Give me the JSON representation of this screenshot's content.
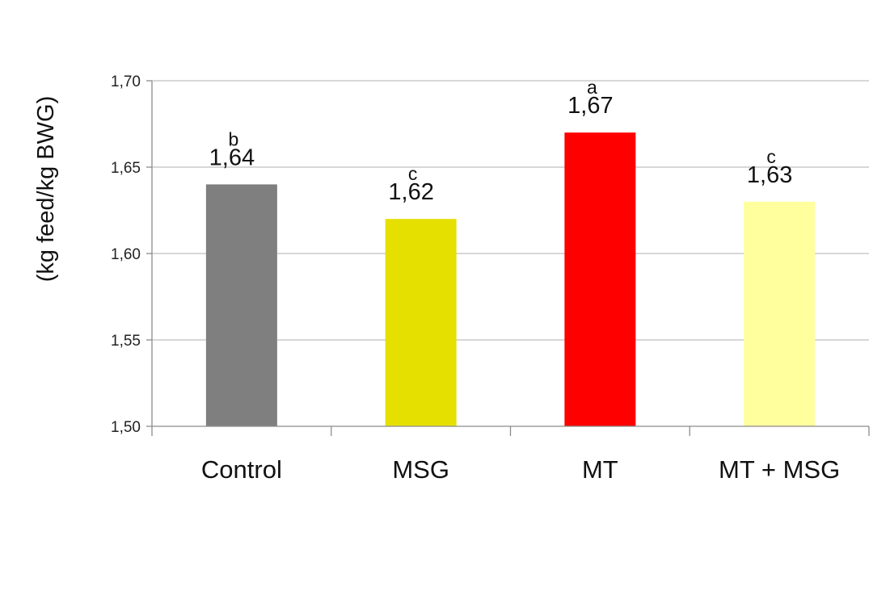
{
  "chart_data": {
    "type": "bar",
    "ylabel": "(kg feed/kg BWG)",
    "ylim": [
      1.5,
      1.7
    ],
    "yticks": [
      1.5,
      1.55,
      1.6,
      1.65,
      1.7
    ],
    "ytick_labels": [
      "1,50",
      "1,55",
      "1,60",
      "1,65",
      "1,70"
    ],
    "categories": [
      "Control",
      "MSG",
      "MT",
      "MT + MSG"
    ],
    "values": [
      1.64,
      1.62,
      1.67,
      1.63
    ],
    "value_labels": [
      "1,64",
      "1,62",
      "1,67",
      "1,63"
    ],
    "significance": [
      "b",
      "c",
      "a",
      "c"
    ],
    "colors": [
      "#7f7f7f",
      "#e6e000",
      "#ff0000",
      "#ffff9e"
    ],
    "grid": true,
    "legend": "none"
  }
}
